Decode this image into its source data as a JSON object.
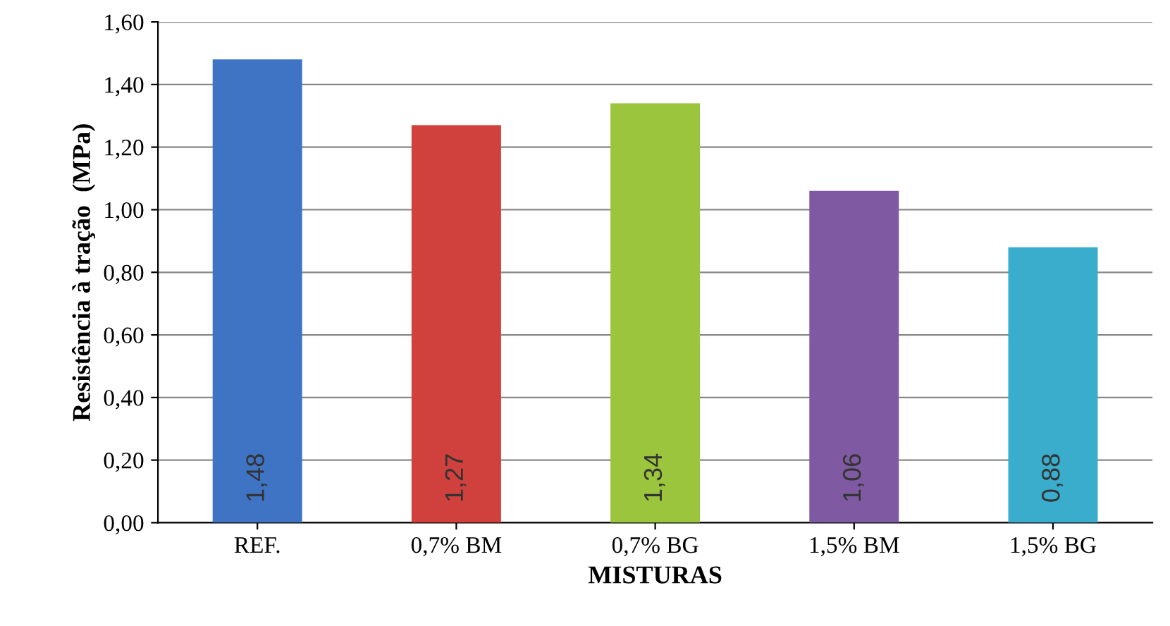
{
  "chart_data": {
    "type": "bar",
    "xlabel": "MISTURAS",
    "ylabel": "Resistência à tração  (MPa)",
    "categories": [
      "REF.",
      "0,7% BM",
      "0,7% BG",
      "1,5% BM",
      "1,5% BG"
    ],
    "values": [
      1.48,
      1.27,
      1.34,
      1.06,
      0.88
    ],
    "colors": [
      "#3f74c4",
      "#d0403c",
      "#9bc53d",
      "#7f5aa2",
      "#3aaccc"
    ],
    "value_labels": [
      "1,48",
      "1,27",
      "1,34",
      "1,06",
      "0,88"
    ],
    "ylim": [
      0,
      1.6
    ],
    "yticks": [
      {
        "value": 0,
        "label": "0,00"
      },
      {
        "value": 0.2,
        "label": "0,20"
      },
      {
        "value": 0.4,
        "label": "0,40"
      },
      {
        "value": 0.6,
        "label": "0,60"
      },
      {
        "value": 0.8,
        "label": "0,80"
      },
      {
        "value": 1.0,
        "label": "1,00"
      },
      {
        "value": 1.2,
        "label": "1,20"
      },
      {
        "value": 1.4,
        "label": "1,40"
      },
      {
        "value": 1.6,
        "label": "1,60"
      }
    ],
    "grid": "y",
    "legend": false
  }
}
